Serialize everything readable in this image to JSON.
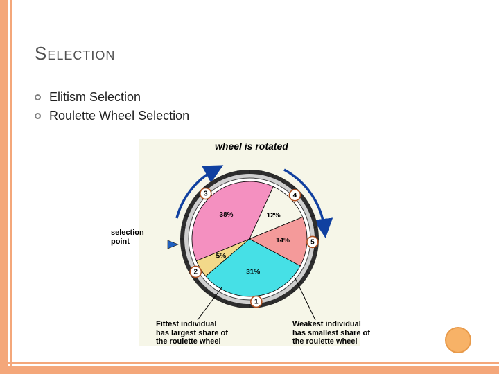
{
  "title": "Selection",
  "bullets": [
    "Elitism Selection",
    "Roulette Wheel Selection"
  ],
  "chart": {
    "type": "pie",
    "background_color": "#f6f6e8",
    "outer_ring_color": "#2e2e2e",
    "outer_ring_inner": "#d0d0d0",
    "tick_color": "#202020",
    "arrow_color": "#1040a0",
    "top_label": "wheel is rotated",
    "slices": [
      {
        "id": "1",
        "label": "1",
        "pct": "31%",
        "value": 31,
        "fill": "#46e0e6"
      },
      {
        "id": "2",
        "label": "2",
        "pct": "5%",
        "value": 5,
        "fill": "#f3d98a"
      },
      {
        "id": "3",
        "label": "3",
        "pct": "38%",
        "value": 38,
        "fill": "#f490c0"
      },
      {
        "id": "4",
        "label": "4",
        "pct": "12%",
        "value": 12,
        "fill": "#f6f6e8"
      },
      {
        "id": "5",
        "label": "5",
        "pct": "14%",
        "value": 14,
        "fill": "#f49a9a"
      }
    ],
    "start_angle_deg": 28,
    "badge_fill": "#ffffff",
    "badge_stroke": "#b05020",
    "pointer": {
      "label1": "selection",
      "label2": "point",
      "fill": "#2060c0"
    },
    "annotations": {
      "fittest": {
        "line1": "Fittest individual",
        "line2": "has largest share of",
        "line3": "the roulette wheel"
      },
      "weakest": {
        "line1": "Weakest individual",
        "line2": "has smallest share of",
        "line3": "the roulette wheel"
      }
    }
  },
  "colors": {
    "accent": "#f4a77a",
    "dot_fill": "#f7b267",
    "dot_border": "#e89a4a",
    "title_color": "#505050"
  }
}
